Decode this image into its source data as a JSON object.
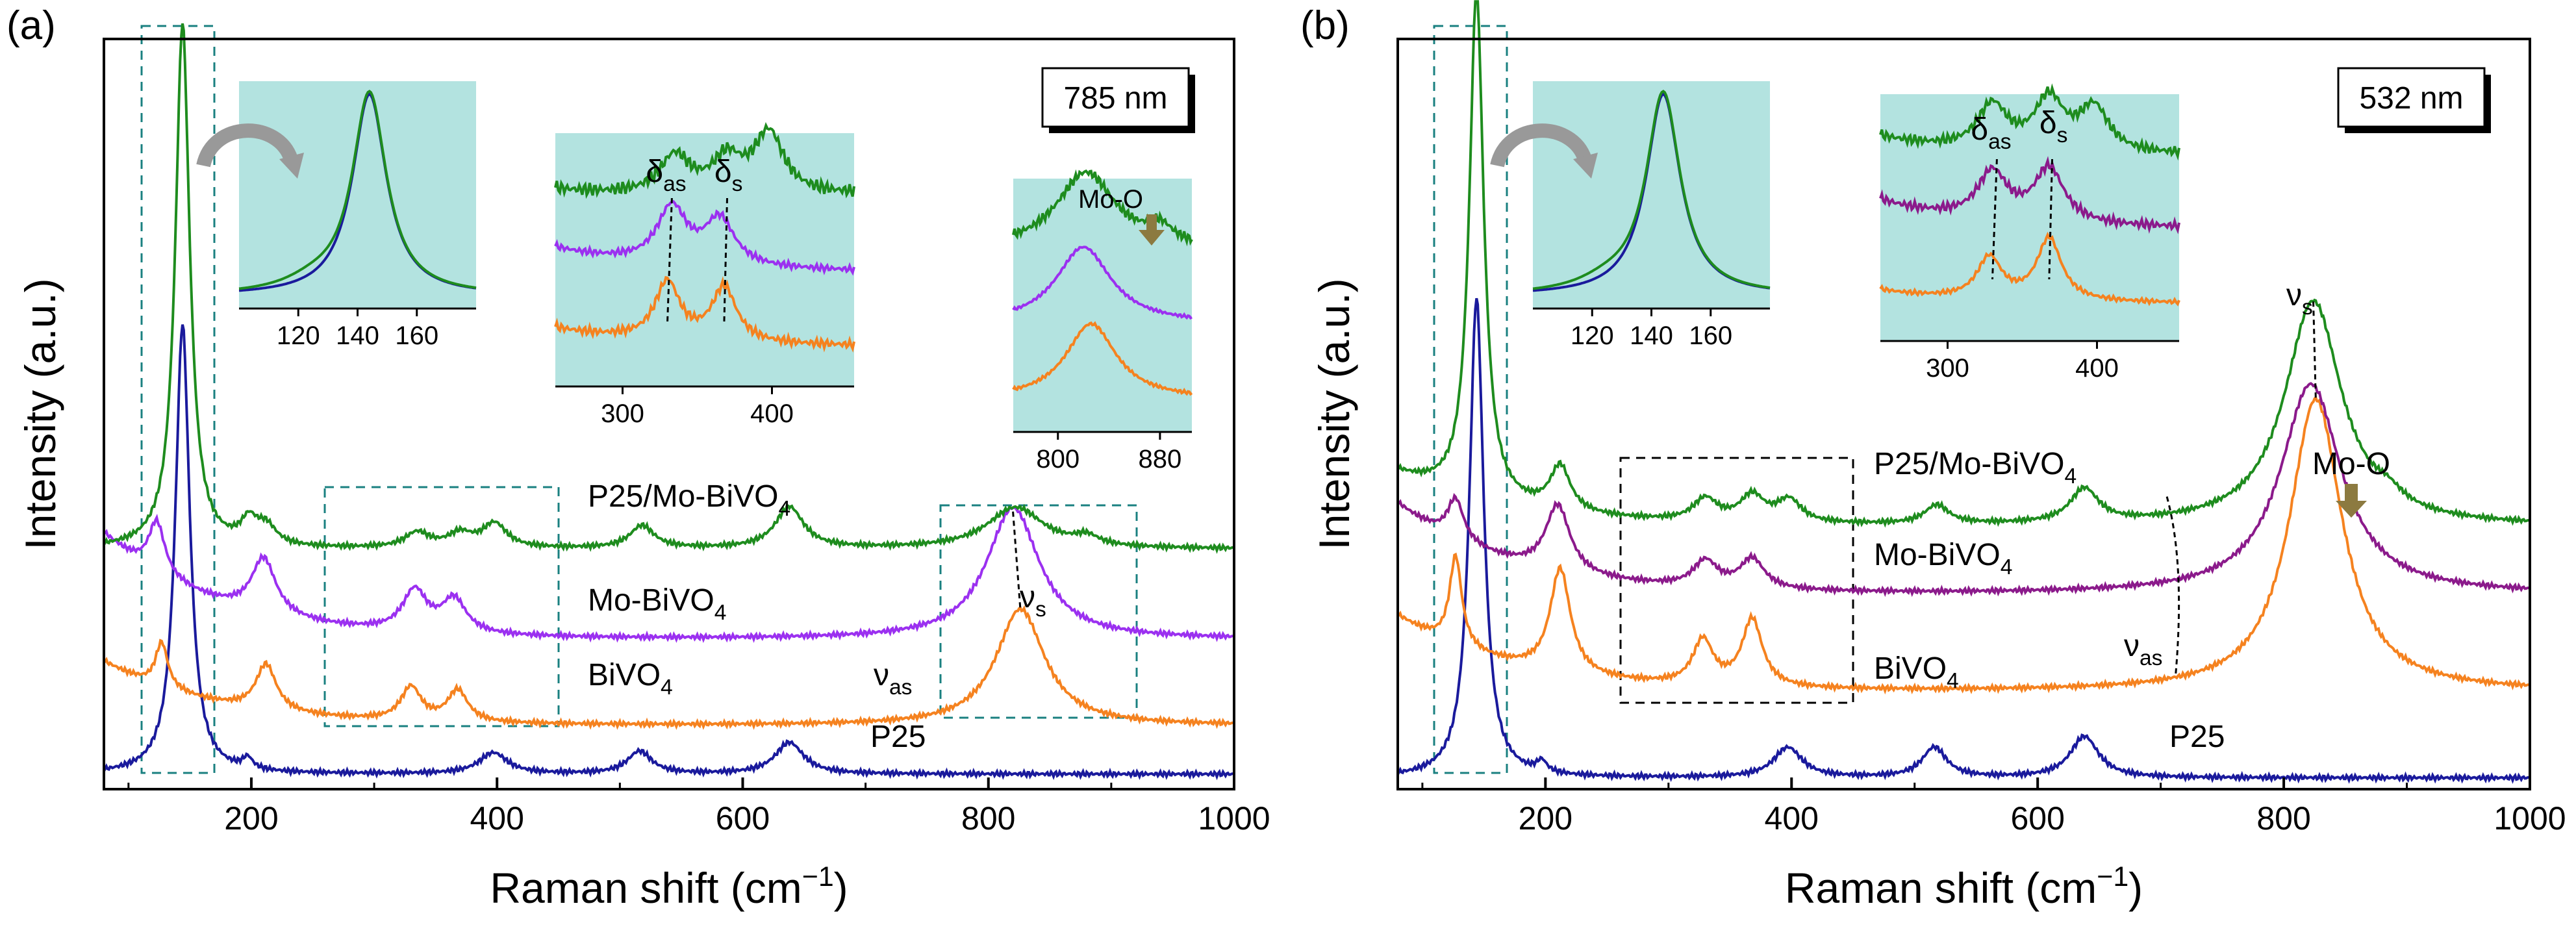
{
  "chart_data": [
    {
      "type": "line",
      "panel_label": "(a)",
      "wavelength_label": "785 nm",
      "xlabel": "Raman shift (cm",
      "xlabel_sup": "−1",
      "xlabel_end": ")",
      "ylabel": "Intensity (a.u.)",
      "xlim": [
        80,
        1000
      ],
      "ylim": [
        0,
        10
      ],
      "x_ticks": [
        200,
        400,
        600,
        800,
        1000
      ],
      "x_tick_labels": [
        "200",
        "400",
        "600",
        "800",
        "1000"
      ],
      "series": [
        {
          "name": "P25",
          "label": "P25",
          "color": "#1a1a9c",
          "baseline": 0.2,
          "peaks": [
            {
              "x": 144,
              "h": 6.0,
              "w": 7
            },
            {
              "x": 197,
              "h": 0.15,
              "w": 5
            },
            {
              "x": 397,
              "h": 0.28,
              "w": 14
            },
            {
              "x": 516,
              "h": 0.3,
              "w": 12
            },
            {
              "x": 638,
              "h": 0.42,
              "w": 14
            }
          ]
        },
        {
          "name": "BiVO4",
          "label": "BiVO",
          "label_sub": "4",
          "color": "#f5821f",
          "baseline": 0.85,
          "slope_start": 1.7,
          "peaks": [
            {
              "x": 127,
              "h": 0.6,
              "w": 6
            },
            {
              "x": 212,
              "h": 0.62,
              "w": 10
            },
            {
              "x": 330,
              "h": 0.45,
              "w": 10
            },
            {
              "x": 368,
              "h": 0.42,
              "w": 10
            },
            {
              "x": 826,
              "h": 1.55,
              "w": 24
            }
          ]
        },
        {
          "name": "Mo-BiVO4",
          "label": "Mo-BiVO",
          "label_sub": "4",
          "color": "#9b30f0",
          "baseline": 2.0,
          "slope_start": 3.4,
          "peaks": [
            {
              "x": 123,
              "h": 0.7,
              "w": 8
            },
            {
              "x": 210,
              "h": 0.75,
              "w": 12
            },
            {
              "x": 333,
              "h": 0.55,
              "w": 12
            },
            {
              "x": 365,
              "h": 0.45,
              "w": 12
            },
            {
              "x": 820,
              "h": 1.75,
              "w": 26
            }
          ]
        },
        {
          "name": "P25/Mo-BiVO4",
          "label": "P25/Mo-BiVO",
          "label_sub": "4",
          "color": "#1e8c1e",
          "baseline": 3.2,
          "peaks": [
            {
              "x": 144,
              "h": 7.0,
              "w": 7
            },
            {
              "x": 198,
              "h": 0.3,
              "w": 8
            },
            {
              "x": 212,
              "h": 0.25,
              "w": 10
            },
            {
              "x": 335,
              "h": 0.2,
              "w": 12
            },
            {
              "x": 370,
              "h": 0.18,
              "w": 12
            },
            {
              "x": 398,
              "h": 0.32,
              "w": 12
            },
            {
              "x": 518,
              "h": 0.3,
              "w": 12
            },
            {
              "x": 638,
              "h": 0.55,
              "w": 14
            },
            {
              "x": 822,
              "h": 0.55,
              "w": 28
            },
            {
              "x": 880,
              "h": 0.12,
              "w": 12
            }
          ]
        }
      ],
      "insets": [
        {
          "name": "inset-140",
          "x_ticks": [
            120,
            140,
            160
          ],
          "x_tick_labels": [
            "120",
            "140",
            "160"
          ]
        },
        {
          "name": "inset-bend",
          "x_ticks": [
            300,
            400
          ],
          "x_tick_labels": [
            "300",
            "400"
          ],
          "delta_as": "δ",
          "delta_as_sub": "as",
          "delta_s": "δ",
          "delta_s_sub": "s"
        },
        {
          "name": "inset-vs",
          "x_ticks": [
            800,
            880
          ],
          "x_tick_labels": [
            "800",
            "880"
          ],
          "mo_o": "Mo-O"
        }
      ],
      "annotations": {
        "nu_s": "ν",
        "nu_s_sub": "s",
        "nu_as": "ν",
        "nu_as_sub": "as"
      }
    },
    {
      "type": "line",
      "panel_label": "(b)",
      "wavelength_label": "532 nm",
      "xlabel": "Raman shift (cm",
      "xlabel_sup": "−1",
      "xlabel_end": ")",
      "ylabel": "Intensity (a.u.)",
      "xlim": [
        80,
        1000
      ],
      "ylim": [
        0,
        10
      ],
      "x_ticks": [
        200,
        400,
        600,
        800,
        1000
      ],
      "x_tick_labels": [
        "200",
        "400",
        "600",
        "800",
        "1000"
      ],
      "series": [
        {
          "name": "P25",
          "label": "P25",
          "color": "#1a1a9c",
          "baseline": 0.15,
          "peaks": [
            {
              "x": 144,
              "h": 6.4,
              "w": 7
            },
            {
              "x": 197,
              "h": 0.15,
              "w": 5
            },
            {
              "x": 397,
              "h": 0.4,
              "w": 14
            },
            {
              "x": 516,
              "h": 0.4,
              "w": 12
            },
            {
              "x": 638,
              "h": 0.55,
              "w": 14
            }
          ]
        },
        {
          "name": "BiVO4",
          "label": "BiVO",
          "label_sub": "4",
          "color": "#f5821f",
          "baseline": 1.3,
          "slope_start": 2.3,
          "peaks": [
            {
              "x": 127,
              "h": 1.2,
              "w": 6
            },
            {
              "x": 212,
              "h": 1.4,
              "w": 10
            },
            {
              "x": 328,
              "h": 0.6,
              "w": 10
            },
            {
              "x": 368,
              "h": 0.9,
              "w": 10
            },
            {
              "x": 826,
              "h": 3.9,
              "w": 26
            }
          ]
        },
        {
          "name": "Mo-BiVO4",
          "label": "Mo-BiVO",
          "label_sub": "4",
          "color": "#8b1a8b",
          "baseline": 2.6,
          "slope_start": 3.8,
          "peaks": [
            {
              "x": 127,
              "h": 0.55,
              "w": 8
            },
            {
              "x": 210,
              "h": 0.9,
              "w": 12
            },
            {
              "x": 330,
              "h": 0.35,
              "w": 12
            },
            {
              "x": 368,
              "h": 0.4,
              "w": 12
            },
            {
              "x": 822,
              "h": 2.8,
              "w": 30
            }
          ]
        },
        {
          "name": "P25/Mo-BiVO4",
          "label": "P25/Mo-BiVO",
          "label_sub": "4",
          "color": "#1e8c1e",
          "baseline": 3.5,
          "slope_start": 4.2,
          "peaks": [
            {
              "x": 144,
              "h": 6.8,
              "w": 7
            },
            {
              "x": 212,
              "h": 0.6,
              "w": 10
            },
            {
              "x": 330,
              "h": 0.3,
              "w": 12
            },
            {
              "x": 368,
              "h": 0.35,
              "w": 12
            },
            {
              "x": 398,
              "h": 0.3,
              "w": 12
            },
            {
              "x": 518,
              "h": 0.25,
              "w": 12
            },
            {
              "x": 638,
              "h": 0.45,
              "w": 14
            },
            {
              "x": 824,
              "h": 3.0,
              "w": 28
            },
            {
              "x": 885,
              "h": 0.15,
              "w": 14
            }
          ]
        }
      ],
      "insets": [
        {
          "name": "inset-140",
          "x_ticks": [
            120,
            140,
            160
          ],
          "x_tick_labels": [
            "120",
            "140",
            "160"
          ]
        },
        {
          "name": "inset-bend",
          "x_ticks": [
            300,
            400
          ],
          "x_tick_labels": [
            "300",
            "400"
          ],
          "delta_as": "δ",
          "delta_as_sub": "as",
          "delta_s": "δ",
          "delta_s_sub": "s"
        }
      ],
      "annotations": {
        "nu_s": "ν",
        "nu_s_sub": "s",
        "nu_as": "ν",
        "nu_as_sub": "as",
        "mo_o": "Mo-O"
      }
    }
  ]
}
